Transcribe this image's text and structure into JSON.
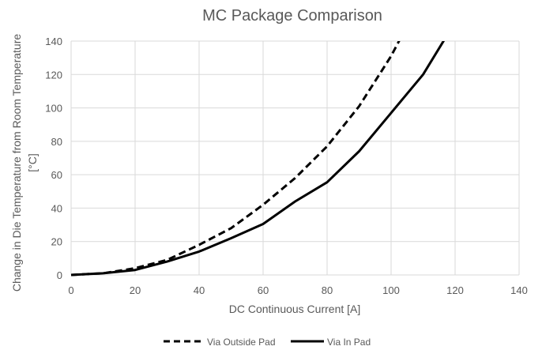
{
  "chart_data": {
    "type": "line",
    "title": "MC Package Comparison",
    "xlabel": "DC Continuous Current [A]",
    "ylabel_lines": [
      "Change in Die Temperature from Room Temperature",
      "[°C]"
    ],
    "xlim": [
      0,
      140
    ],
    "ylim": [
      0,
      140
    ],
    "xticks": [
      0,
      20,
      40,
      60,
      80,
      100,
      120,
      140
    ],
    "yticks": [
      0,
      20,
      40,
      60,
      80,
      100,
      120,
      140
    ],
    "grid": true,
    "legend_position": "bottom",
    "series": [
      {
        "name": "Via Outside Pad",
        "style": "dashed",
        "color": "#000000",
        "points": [
          [
            0,
            0
          ],
          [
            10,
            1
          ],
          [
            20,
            4
          ],
          [
            30,
            9
          ],
          [
            40,
            18
          ],
          [
            50,
            28
          ],
          [
            60,
            42
          ],
          [
            70,
            58
          ],
          [
            80,
            77
          ],
          [
            90,
            101
          ],
          [
            100,
            131
          ],
          [
            103,
            142
          ]
        ]
      },
      {
        "name": "Via In Pad",
        "style": "solid",
        "color": "#000000",
        "points": [
          [
            0,
            0
          ],
          [
            10,
            1
          ],
          [
            20,
            3
          ],
          [
            30,
            8
          ],
          [
            40,
            14
          ],
          [
            50,
            22
          ],
          [
            60,
            30.5
          ],
          [
            70,
            44
          ],
          [
            80,
            55.5
          ],
          [
            90,
            74
          ],
          [
            100,
            97
          ],
          [
            110,
            120
          ],
          [
            117,
            142
          ]
        ]
      }
    ]
  }
}
